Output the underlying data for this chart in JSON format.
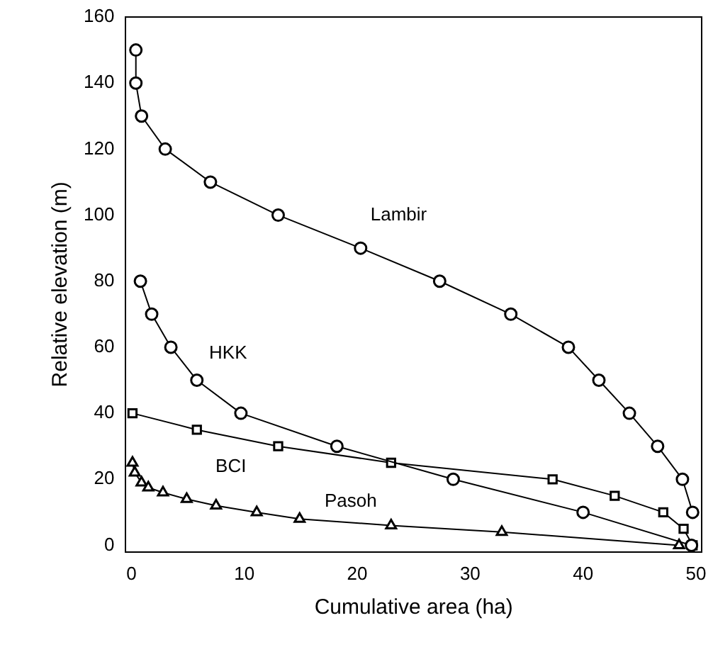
{
  "chart_data": {
    "type": "line",
    "xlabel": "Cumulative area (ha)",
    "ylabel": "Relative elevation (m)",
    "xlim": [
      -0.5,
      50.5
    ],
    "ylim": [
      -2,
      160
    ],
    "xticks": [
      0,
      10,
      20,
      30,
      40,
      50
    ],
    "yticks": [
      0,
      20,
      40,
      60,
      80,
      100,
      120,
      140,
      160
    ],
    "grid": false,
    "legend": false,
    "line_style": "solid",
    "series": [
      {
        "name": "Lambir",
        "marker": "circle",
        "color": "#000000",
        "x": [
          0.4,
          0.4,
          0.9,
          3,
          7,
          13,
          20.3,
          27.3,
          33.6,
          38.7,
          41.4,
          44.1,
          46.6,
          48.8,
          49.7
        ],
        "values": [
          150,
          140,
          130,
          120,
          110,
          100,
          90,
          80,
          70,
          60,
          50,
          40,
          30,
          20,
          10
        ]
      },
      {
        "name": "HKK",
        "marker": "circle",
        "color": "#000000",
        "x": [
          0.8,
          1.8,
          3.5,
          5.8,
          9.7,
          18.2,
          28.5,
          40,
          49.6
        ],
        "values": [
          80,
          70,
          60,
          50,
          40,
          30,
          20,
          10,
          0
        ]
      },
      {
        "name": "BCI",
        "marker": "square",
        "color": "#000000",
        "x": [
          0.1,
          5.8,
          13,
          23,
          37.3,
          42.8,
          47.1,
          48.9,
          49.7
        ],
        "values": [
          40,
          35,
          30,
          25,
          20,
          15,
          10,
          5,
          0
        ]
      },
      {
        "name": "Pasoh",
        "marker": "triangle",
        "color": "#000000",
        "x": [
          0.1,
          0.3,
          0.9,
          1.5,
          2.8,
          4.9,
          7.5,
          11.1,
          14.9,
          23,
          32.8,
          48.5
        ],
        "values": [
          25,
          22,
          19,
          17.5,
          16,
          14,
          12,
          10,
          8,
          6,
          4,
          0
        ]
      }
    ]
  }
}
